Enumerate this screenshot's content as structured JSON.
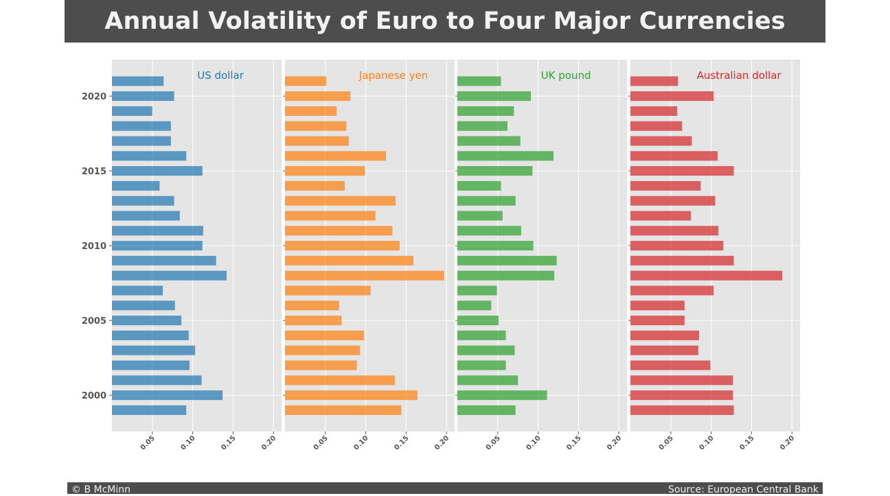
{
  "title": "Annual Volatility of Euro to Four Major Currencies",
  "footer": {
    "credit": "© B McMinn",
    "source": "Source: European Central Bank"
  },
  "chart_data": {
    "type": "bar",
    "orientation": "horizontal",
    "style": "ggplot",
    "grid": true,
    "years": [
      1999,
      2000,
      2001,
      2002,
      2003,
      2004,
      2005,
      2006,
      2007,
      2008,
      2009,
      2010,
      2011,
      2012,
      2013,
      2014,
      2015,
      2016,
      2017,
      2018,
      2019,
      2020,
      2021
    ],
    "y_tick_labels": [
      "2000",
      "2005",
      "2010",
      "2015",
      "2020"
    ],
    "x_tick_labels": [
      "0.05",
      "0.10",
      "0.15",
      "0.20"
    ],
    "xlim": [
      0,
      0.21
    ],
    "series": [
      {
        "name": "US dollar",
        "color": "#1f77b4",
        "values": [
          0.092,
          0.137,
          0.111,
          0.096,
          0.103,
          0.095,
          0.086,
          0.078,
          0.063,
          0.142,
          0.129,
          0.112,
          0.113,
          0.084,
          0.077,
          0.059,
          0.112,
          0.092,
          0.073,
          0.073,
          0.05,
          0.077,
          0.064
        ]
      },
      {
        "name": "Japanese yen",
        "color": "#ff7f0e",
        "values": [
          0.144,
          0.164,
          0.136,
          0.089,
          0.093,
          0.098,
          0.07,
          0.067,
          0.106,
          0.197,
          0.159,
          0.142,
          0.133,
          0.112,
          0.137,
          0.074,
          0.099,
          0.125,
          0.079,
          0.076,
          0.064,
          0.081,
          0.051
        ]
      },
      {
        "name": "UK pound",
        "color": "#2ca02c",
        "values": [
          0.072,
          0.111,
          0.075,
          0.06,
          0.071,
          0.06,
          0.051,
          0.042,
          0.049,
          0.12,
          0.123,
          0.094,
          0.079,
          0.056,
          0.072,
          0.054,
          0.093,
          0.119,
          0.078,
          0.062,
          0.07,
          0.091,
          0.054
        ]
      },
      {
        "name": "Australian dollar",
        "color": "#d62728",
        "values": [
          0.128,
          0.127,
          0.127,
          0.099,
          0.084,
          0.085,
          0.067,
          0.067,
          0.103,
          0.188,
          0.128,
          0.115,
          0.109,
          0.075,
          0.105,
          0.087,
          0.128,
          0.108,
          0.076,
          0.064,
          0.058,
          0.103,
          0.059
        ]
      }
    ]
  }
}
